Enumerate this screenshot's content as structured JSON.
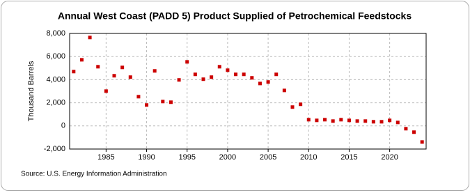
{
  "chart_data": {
    "type": "scatter",
    "title": "Annual West Coast (PADD 5) Product Supplied of Petrochemical Feedstocks",
    "y_label": "Thousand Barrels",
    "source": "Source: U.S. Energy Information Administration",
    "x": [
      1981,
      1982,
      1983,
      1984,
      1985,
      1986,
      1987,
      1988,
      1989,
      1990,
      1991,
      1992,
      1993,
      1994,
      1995,
      1996,
      1997,
      1998,
      1999,
      2000,
      2001,
      2002,
      2003,
      2004,
      2005,
      2006,
      2007,
      2008,
      2009,
      2010,
      2011,
      2012,
      2013,
      2014,
      2015,
      2016,
      2017,
      2018,
      2019,
      2020,
      2021,
      2022,
      2023,
      2024
    ],
    "values": [
      4700,
      5720,
      7650,
      5120,
      3010,
      4340,
      5060,
      4220,
      2530,
      1810,
      4760,
      2110,
      2050,
      3980,
      5540,
      4460,
      4040,
      4220,
      5120,
      4820,
      4460,
      4460,
      4160,
      3670,
      3800,
      4460,
      3070,
      1630,
      1870,
      540,
      480,
      540,
      420,
      540,
      480,
      420,
      420,
      360,
      360,
      480,
      300,
      -240,
      -540,
      -1390
    ],
    "color": "#cc0000",
    "xlim": [
      1980.5,
      2024.5
    ],
    "xticks": [
      1985,
      1990,
      1995,
      2000,
      2005,
      2010,
      2015,
      2020
    ],
    "ylim": [
      -2000,
      8000
    ],
    "yticks": [
      {
        "value": -2000,
        "label": "-2,000"
      },
      0,
      {
        "value": 2000,
        "label": "2,000"
      },
      {
        "value": 4000,
        "label": "4,000"
      },
      {
        "value": 6000,
        "label": "6,000"
      },
      {
        "value": 8000,
        "label": "8,000"
      }
    ],
    "grid": true
  }
}
